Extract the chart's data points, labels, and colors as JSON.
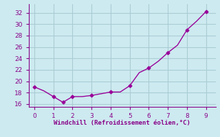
{
  "x": [
    0,
    0.5,
    1,
    1.5,
    2,
    2.5,
    3,
    3.5,
    4,
    4.5,
    5,
    5.5,
    6,
    6.5,
    7,
    7.5,
    8,
    8.5,
    9
  ],
  "y": [
    19.0,
    18.3,
    17.3,
    16.3,
    17.3,
    17.3,
    17.5,
    17.8,
    18.1,
    18.1,
    19.2,
    21.5,
    22.3,
    23.5,
    25.0,
    26.3,
    29.0,
    30.5,
    32.2
  ],
  "line_color": "#990099",
  "marker_x": [
    0,
    1,
    1.5,
    2,
    3,
    4,
    5,
    6,
    7,
    8,
    9
  ],
  "marker_y": [
    19.0,
    17.3,
    16.3,
    17.3,
    17.5,
    18.1,
    19.2,
    22.3,
    25.0,
    29.0,
    32.2
  ],
  "xlim": [
    -0.3,
    9.5
  ],
  "ylim": [
    15.5,
    33.5
  ],
  "xticks": [
    0,
    1,
    2,
    3,
    4,
    5,
    6,
    7,
    8,
    9
  ],
  "yticks": [
    16,
    18,
    20,
    22,
    24,
    26,
    28,
    30,
    32
  ],
  "xlabel": "Windchill (Refroidissement éolien,°C)",
  "background_color": "#cdeaf0",
  "grid_color": "#aaccd4",
  "tick_color": "#880088",
  "label_color": "#880088",
  "spine_color": "#880088"
}
